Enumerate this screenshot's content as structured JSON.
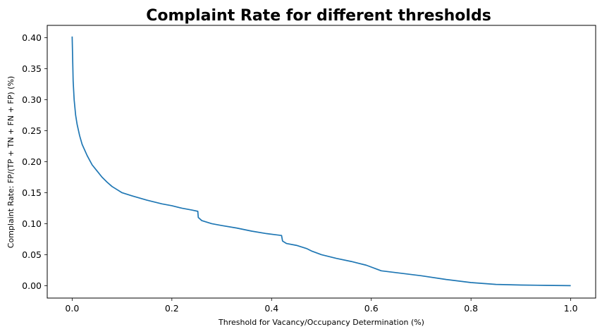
{
  "chart_data": {
    "type": "line",
    "title": "Complaint Rate for different thresholds",
    "xlabel": "Threshold for Vacancy/Occupancy Determination (%)",
    "ylabel": "Complaint Rate: FP/(TP + TN + FN + FP) (%)",
    "xlim": [
      -0.05,
      1.05
    ],
    "ylim": [
      -0.02,
      0.42
    ],
    "xticks": [
      0.0,
      0.2,
      0.4,
      0.6,
      0.8,
      1.0
    ],
    "xtick_labels": [
      "0.0",
      "0.2",
      "0.4",
      "0.6",
      "0.8",
      "1.0"
    ],
    "yticks": [
      0.0,
      0.05,
      0.1,
      0.15,
      0.2,
      0.25,
      0.3,
      0.35,
      0.4
    ],
    "ytick_labels": [
      "0.00",
      "0.05",
      "0.10",
      "0.15",
      "0.20",
      "0.25",
      "0.30",
      "0.35",
      "0.40"
    ],
    "grid": false,
    "series": [
      {
        "color": "#1f77b4",
        "x": [
          0.0,
          0.002,
          0.004,
          0.007,
          0.01,
          0.015,
          0.02,
          0.03,
          0.04,
          0.05,
          0.06,
          0.07,
          0.08,
          0.09,
          0.1,
          0.12,
          0.15,
          0.18,
          0.2,
          0.22,
          0.24,
          0.252,
          0.253,
          0.26,
          0.28,
          0.3,
          0.33,
          0.36,
          0.39,
          0.41,
          0.42,
          0.422,
          0.43,
          0.45,
          0.47,
          0.48,
          0.5,
          0.53,
          0.56,
          0.59,
          0.61,
          0.62,
          0.65,
          0.7,
          0.75,
          0.8,
          0.85,
          0.9,
          0.95,
          1.0
        ],
        "y": [
          0.402,
          0.33,
          0.3,
          0.275,
          0.26,
          0.242,
          0.228,
          0.21,
          0.195,
          0.185,
          0.175,
          0.167,
          0.16,
          0.155,
          0.15,
          0.145,
          0.138,
          0.132,
          0.129,
          0.125,
          0.122,
          0.12,
          0.11,
          0.105,
          0.1,
          0.097,
          0.093,
          0.088,
          0.084,
          0.082,
          0.081,
          0.072,
          0.068,
          0.065,
          0.06,
          0.056,
          0.05,
          0.044,
          0.039,
          0.033,
          0.027,
          0.024,
          0.021,
          0.016,
          0.01,
          0.005,
          0.002,
          0.001,
          0.0005,
          0.0
        ]
      }
    ]
  }
}
